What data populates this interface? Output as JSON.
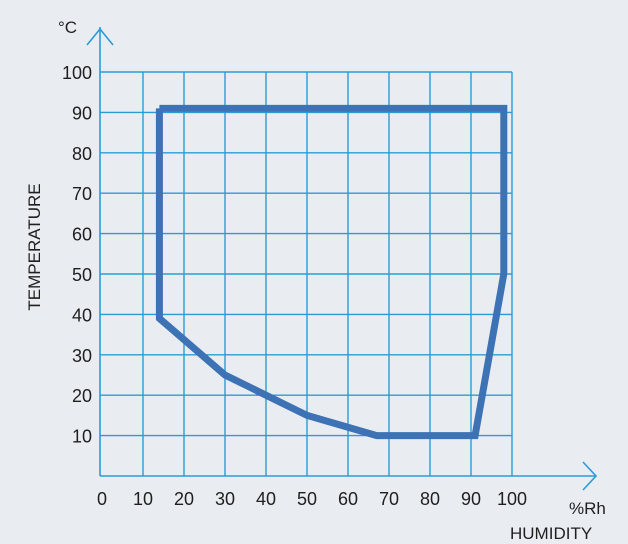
{
  "chart_data": {
    "type": "line",
    "title": "",
    "xlabel": "HUMIDITY",
    "xunit": "%Rh",
    "ylabel": "TEMPERATURE",
    "yunit": "°C",
    "xlim": [
      0,
      100
    ],
    "ylim": [
      0,
      100
    ],
    "x_ticks": [
      "0",
      "10",
      "20",
      "30",
      "40",
      "50",
      "60",
      "70",
      "80",
      "90",
      "100"
    ],
    "y_ticks": [
      "10",
      "20",
      "30",
      "40",
      "50",
      "60",
      "70",
      "80",
      "90",
      "100"
    ],
    "grid": true,
    "series": [
      {
        "points": [
          {
            "x": 14,
            "y": 91
          },
          {
            "x": 98,
            "y": 91
          },
          {
            "x": 98,
            "y": 50
          },
          {
            "x": 91,
            "y": 10
          },
          {
            "x": 67,
            "y": 10
          },
          {
            "x": 50,
            "y": 15
          },
          {
            "x": 30,
            "y": 25
          },
          {
            "x": 14,
            "y": 39
          },
          {
            "x": 14,
            "y": 91
          }
        ]
      }
    ]
  },
  "colors": {
    "background": "#e9edf1",
    "grid": "#2a9bd7",
    "axis": "#2a9bd7",
    "series": "#3d72b5",
    "text": "#1f1f1f"
  }
}
